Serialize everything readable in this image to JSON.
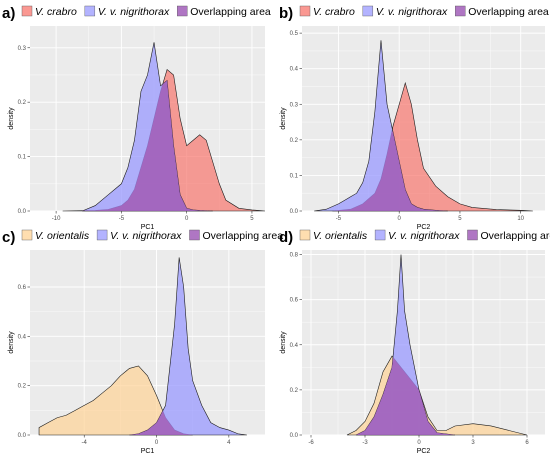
{
  "chart_data": [
    {
      "panel": "a)",
      "type": "area",
      "xlabel": "PC1",
      "ylabel": "density",
      "xlim": [
        -12,
        6
      ],
      "ylim": [
        0,
        0.34
      ],
      "xticks": [
        -10,
        -5,
        0,
        5
      ],
      "yticks": [
        0.0,
        0.1,
        0.2,
        0.3
      ],
      "legend": [
        "V. crabro",
        "V. v. nigrithorax",
        "Overlapping area"
      ],
      "legend_position": "top",
      "grid": true,
      "series": [
        {
          "name": "V. crabro",
          "color": "#F8766D",
          "x": [
            -9.5,
            -7,
            -6,
            -5,
            -4.5,
            -4,
            -3.5,
            -3,
            -2.5,
            -2,
            -1.5,
            -1,
            -0.5,
            0,
            0.5,
            1,
            1.5,
            2,
            2.5,
            3,
            4,
            5,
            6
          ],
          "y": [
            0,
            0.001,
            0.003,
            0.01,
            0.02,
            0.04,
            0.08,
            0.12,
            0.17,
            0.22,
            0.26,
            0.25,
            0.17,
            0.12,
            0.13,
            0.14,
            0.13,
            0.09,
            0.05,
            0.02,
            0.005,
            0.002,
            0
          ]
        },
        {
          "name": "V. v. nigrithorax",
          "color": "#9999FF",
          "x": [
            -8,
            -7,
            -6,
            -5.5,
            -5,
            -4.5,
            -4,
            -3.5,
            -3,
            -2.5,
            -2,
            -1.5,
            -1,
            -0.5,
            0,
            0.5,
            1,
            2
          ],
          "y": [
            0,
            0.01,
            0.03,
            0.04,
            0.05,
            0.08,
            0.13,
            0.22,
            0.25,
            0.31,
            0.23,
            0.24,
            0.12,
            0.03,
            0.005,
            0.002,
            0.001,
            0
          ]
        }
      ]
    },
    {
      "panel": "b)",
      "type": "area",
      "xlabel": "PC2",
      "ylabel": "density",
      "xlim": [
        -8,
        12
      ],
      "ylim": [
        0,
        0.52
      ],
      "xticks": [
        -5,
        0,
        5,
        10
      ],
      "yticks": [
        0.0,
        0.1,
        0.2,
        0.3,
        0.4,
        0.5
      ],
      "legend": [
        "V. crabro",
        "V. v. nigrithorax",
        "Overlapping area"
      ],
      "legend_position": "top",
      "grid": true,
      "series": [
        {
          "name": "V. crabro",
          "color": "#F8766D",
          "x": [
            -5.5,
            -4,
            -3,
            -2,
            -1.5,
            -1,
            -0.5,
            0,
            0.5,
            1,
            1.5,
            2,
            3,
            4,
            5,
            6,
            8,
            10,
            11
          ],
          "y": [
            0,
            0.005,
            0.02,
            0.05,
            0.09,
            0.16,
            0.24,
            0.3,
            0.36,
            0.3,
            0.2,
            0.12,
            0.07,
            0.04,
            0.02,
            0.01,
            0.004,
            0.002,
            0
          ]
        },
        {
          "name": "V. v. nigrithorax",
          "color": "#9999FF",
          "x": [
            -7,
            -6,
            -5,
            -4.5,
            -4,
            -3.5,
            -3,
            -2.5,
            -2,
            -1.5,
            -1,
            -0.5,
            0,
            0.5,
            1,
            1.5,
            2,
            3,
            4
          ],
          "y": [
            0,
            0.005,
            0.02,
            0.03,
            0.04,
            0.05,
            0.08,
            0.14,
            0.28,
            0.48,
            0.3,
            0.22,
            0.14,
            0.06,
            0.02,
            0.01,
            0.005,
            0.002,
            0
          ]
        }
      ]
    },
    {
      "panel": "c)",
      "type": "area",
      "xlabel": "PC1",
      "ylabel": "density",
      "xlim": [
        -7,
        6
      ],
      "ylim": [
        0,
        0.75
      ],
      "xticks": [
        -4,
        0,
        4
      ],
      "yticks": [
        0.0,
        0.2,
        0.4,
        0.6
      ],
      "legend": [
        "V. orientalis",
        "V. v. nigrithorax",
        "Overlapping area"
      ],
      "legend_position": "top",
      "grid": true,
      "series": [
        {
          "name": "V. orientalis",
          "color": "#FFD395",
          "x": [
            -6.5,
            -6,
            -5.5,
            -5,
            -4.5,
            -4,
            -3.5,
            -3,
            -2.5,
            -2,
            -1.5,
            -1,
            -0.5,
            0,
            0.5,
            1,
            1.5,
            2
          ],
          "y": [
            0.03,
            0.05,
            0.07,
            0.08,
            0.1,
            0.12,
            0.14,
            0.17,
            0.2,
            0.24,
            0.27,
            0.28,
            0.24,
            0.16,
            0.07,
            0.02,
            0.005,
            0
          ]
        },
        {
          "name": "V. v. nigrithorax",
          "color": "#9999FF",
          "x": [
            -1.5,
            -1,
            -0.5,
            0,
            0.5,
            1,
            1.25,
            1.5,
            1.75,
            2,
            2.5,
            3,
            3.5,
            4,
            4.5,
            5
          ],
          "y": [
            0,
            0.005,
            0.02,
            0.05,
            0.12,
            0.45,
            0.72,
            0.6,
            0.35,
            0.22,
            0.12,
            0.05,
            0.03,
            0.02,
            0.005,
            0
          ]
        }
      ]
    },
    {
      "panel": "d)",
      "type": "area",
      "xlabel": "PC2",
      "ylabel": "density",
      "xlim": [
        -6.5,
        7
      ],
      "ylim": [
        0,
        0.82
      ],
      "xticks": [
        -6,
        -3,
        0,
        3,
        6
      ],
      "yticks": [
        0.0,
        0.2,
        0.4,
        0.6,
        0.8
      ],
      "legend": [
        "V. orientalis",
        "V. v. nigrithorax",
        "Overlapping area"
      ],
      "legend_position": "top",
      "grid": true,
      "series": [
        {
          "name": "V. orientalis",
          "color": "#FFD395",
          "x": [
            -4,
            -3.5,
            -3,
            -2.5,
            -2,
            -1.5,
            -1,
            -0.5,
            0,
            0.5,
            1,
            1.5,
            2,
            3,
            4,
            5,
            6
          ],
          "y": [
            0,
            0.02,
            0.06,
            0.14,
            0.28,
            0.35,
            0.3,
            0.25,
            0.2,
            0.08,
            0.02,
            0.02,
            0.04,
            0.05,
            0.04,
            0.02,
            0
          ]
        },
        {
          "name": "V. v. nigrithorax",
          "color": "#9999FF",
          "x": [
            -3.5,
            -3,
            -2.5,
            -2,
            -1.5,
            -1.2,
            -1,
            -0.8,
            -0.5,
            0,
            0.5,
            1,
            2
          ],
          "y": [
            0,
            0.02,
            0.08,
            0.18,
            0.3,
            0.55,
            0.8,
            0.55,
            0.4,
            0.2,
            0.06,
            0.01,
            0
          ]
        }
      ]
    }
  ]
}
